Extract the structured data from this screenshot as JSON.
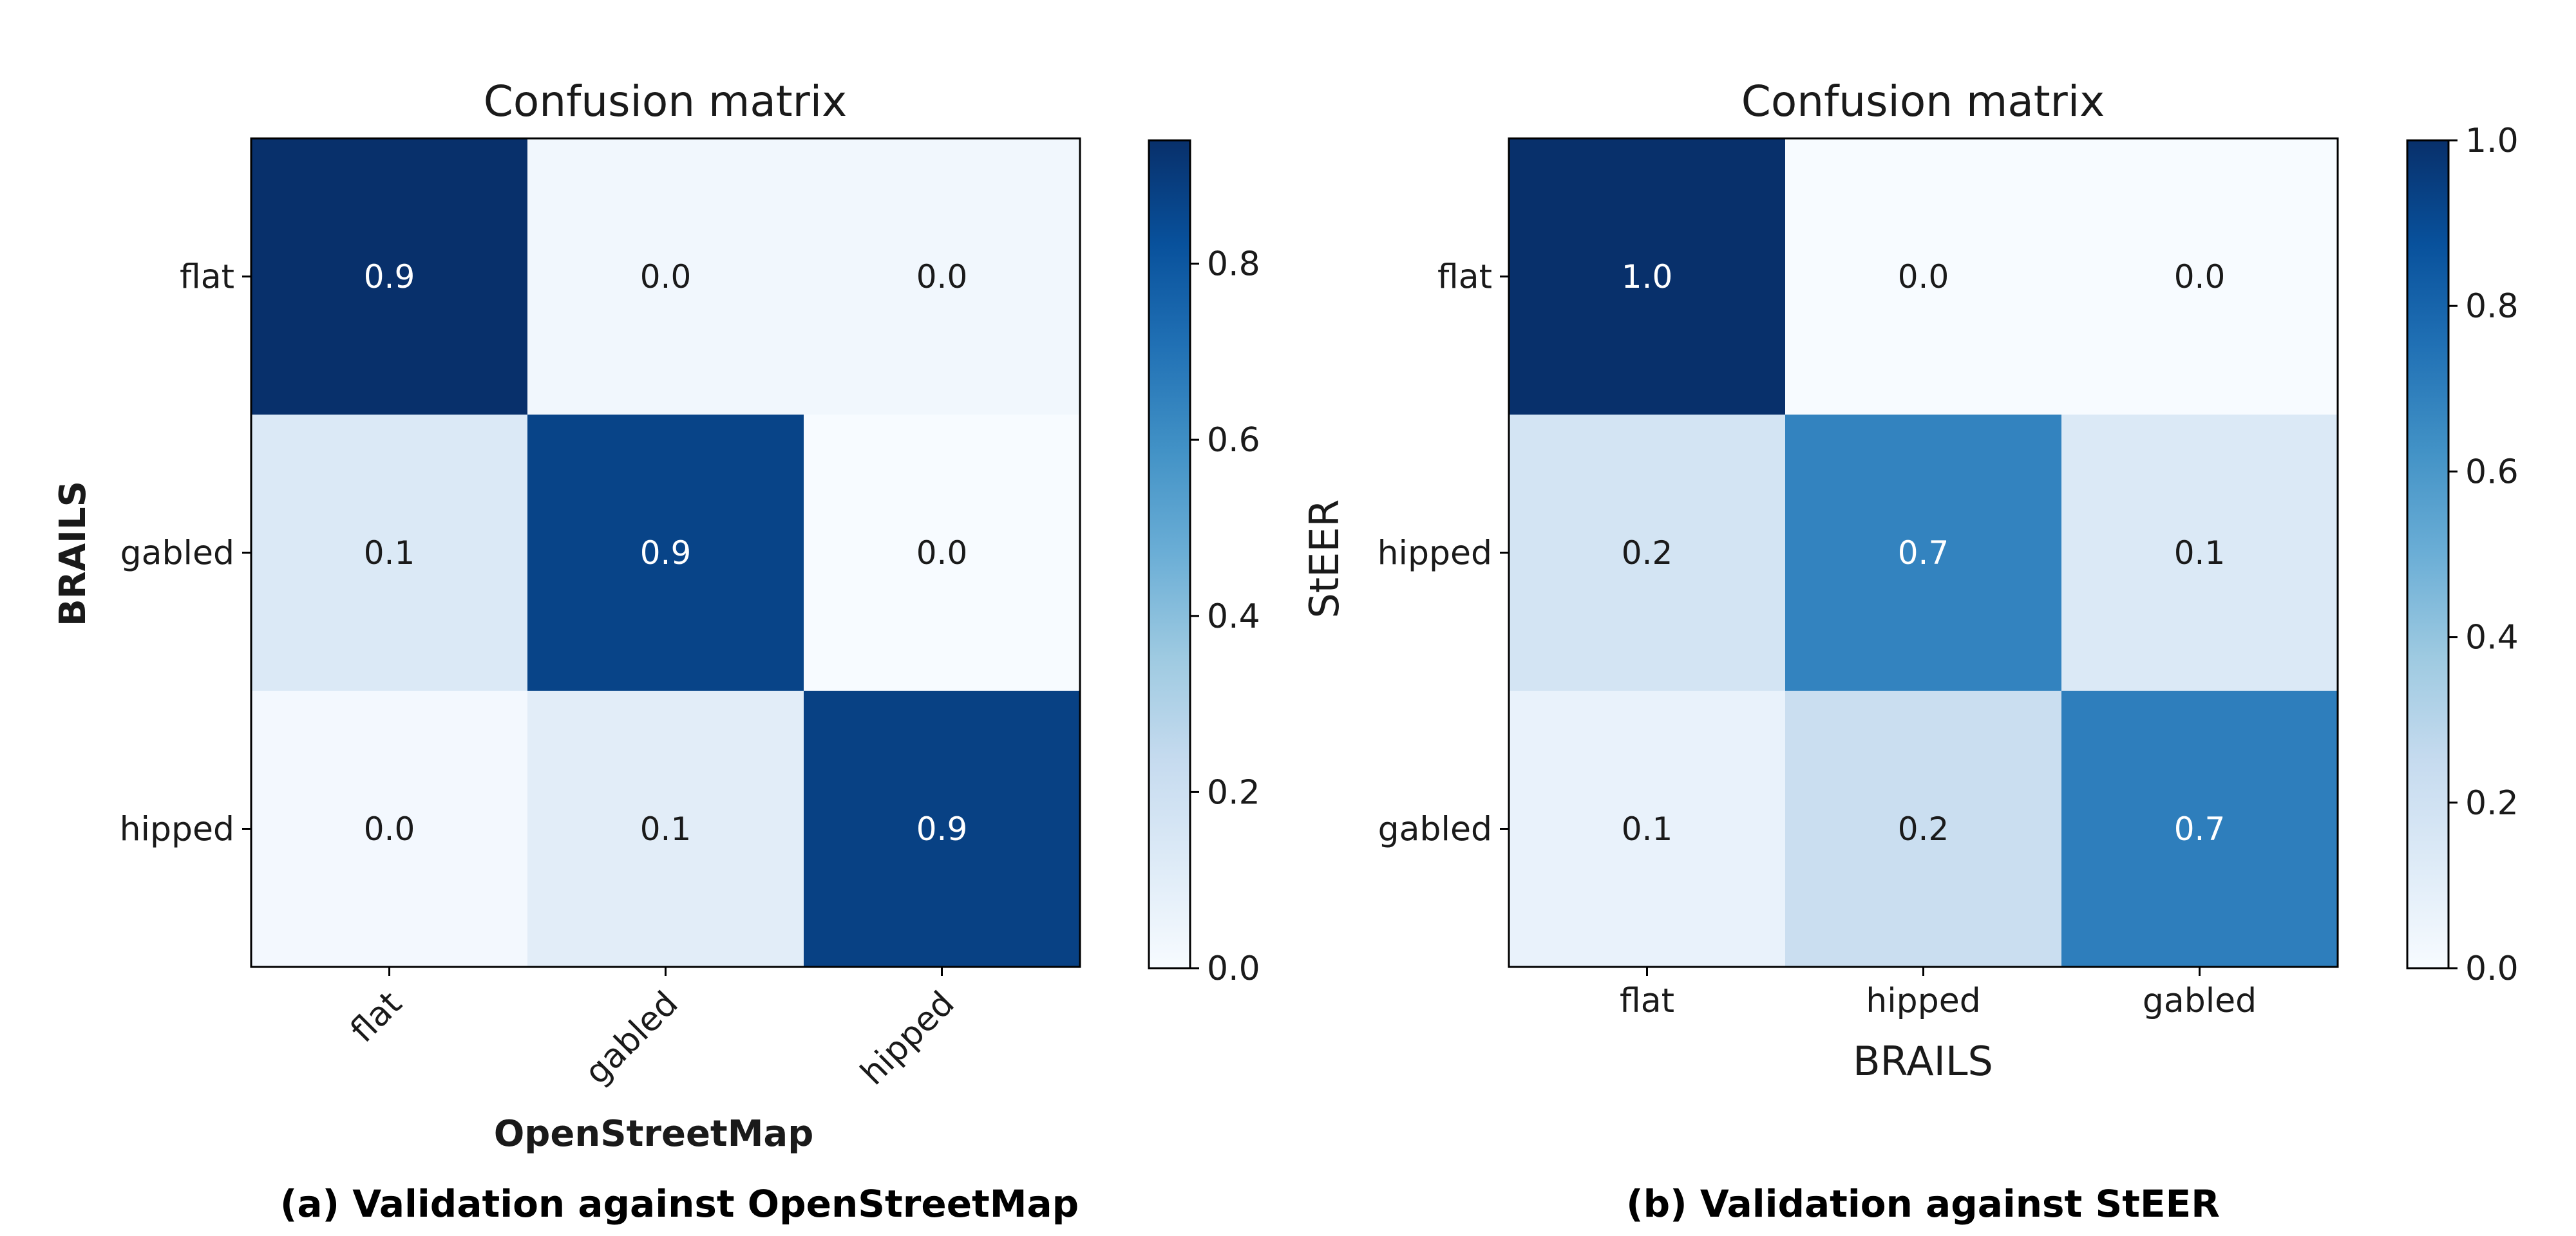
{
  "figure": {
    "caption_a": "(a) Validation against OpenStreetMap",
    "caption_b": "(b) Validation against StEER"
  },
  "chart_data": [
    {
      "type": "heatmap",
      "title": "Confusion matrix",
      "xlabel": "OpenStreetMap",
      "ylabel": "BRAILS",
      "x_categories": [
        "flat",
        "gabled",
        "hipped"
      ],
      "y_categories": [
        "flat",
        "gabled",
        "hipped"
      ],
      "values": [
        [
          0.9,
          0.0,
          0.0
        ],
        [
          0.1,
          0.9,
          0.0
        ],
        [
          0.0,
          0.1,
          0.9
        ]
      ],
      "raw_values": [
        [
          0.94,
          0.03,
          0.03
        ],
        [
          0.13,
          0.87,
          0.0
        ],
        [
          0.02,
          0.1,
          0.88
        ]
      ],
      "x_tick_rotation": 45,
      "colorbar": {
        "min": 0.0,
        "max": 0.94,
        "ticks": [
          0.0,
          0.2,
          0.4,
          0.6,
          0.8
        ],
        "tick_labels": [
          "0.0",
          "0.2",
          "0.4",
          "0.6",
          "0.8"
        ],
        "colormap": "Blues"
      }
    },
    {
      "type": "heatmap",
      "title": "Confusion matrix",
      "xlabel": "BRAILS",
      "ylabel": "StEER",
      "x_categories": [
        "flat",
        "hipped",
        "gabled"
      ],
      "y_categories": [
        "flat",
        "hipped",
        "gabled"
      ],
      "values": [
        [
          1.0,
          0.0,
          0.0
        ],
        [
          0.2,
          0.7,
          0.1
        ],
        [
          0.1,
          0.2,
          0.7
        ]
      ],
      "raw_values": [
        [
          1.0,
          0.0,
          0.0
        ],
        [
          0.18,
          0.68,
          0.14
        ],
        [
          0.07,
          0.23,
          0.7
        ]
      ],
      "x_tick_rotation": 0,
      "colorbar": {
        "min": 0.0,
        "max": 1.0,
        "ticks": [
          0.0,
          0.2,
          0.4,
          0.6,
          0.8,
          1.0
        ],
        "tick_labels": [
          "0.0",
          "0.2",
          "0.4",
          "0.6",
          "0.8",
          "1.0"
        ],
        "colormap": "Blues"
      }
    }
  ]
}
